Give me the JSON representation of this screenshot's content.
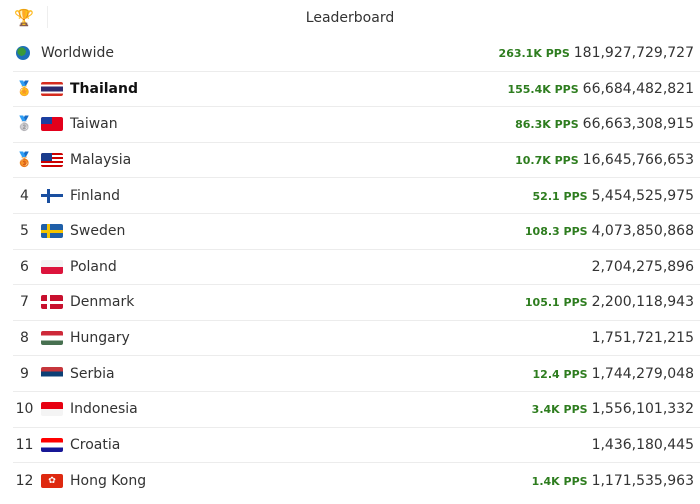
{
  "header": {
    "title": "Leaderboard",
    "icon": "trophy-icon"
  },
  "colors": {
    "pps": "#2e7d1f"
  },
  "worldwide": {
    "name": "Worldwide",
    "pps": "263.1K PPS",
    "score": "181,927,729,727"
  },
  "rows": [
    {
      "rank": "",
      "medal": "gold",
      "name": "Thailand",
      "pps": "155.4K PPS",
      "score": "66,684,482,821",
      "bold": true
    },
    {
      "rank": "",
      "medal": "silver",
      "name": "Taiwan",
      "pps": "86.3K PPS",
      "score": "66,663,308,915"
    },
    {
      "rank": "",
      "medal": "bronze",
      "name": "Malaysia",
      "pps": "10.7K PPS",
      "score": "16,645,766,653"
    },
    {
      "rank": "4",
      "name": "Finland",
      "pps": "52.1 PPS",
      "score": "5,454,525,975"
    },
    {
      "rank": "5",
      "name": "Sweden",
      "pps": "108.3 PPS",
      "score": "4,073,850,868"
    },
    {
      "rank": "6",
      "name": "Poland",
      "pps": "",
      "score": "2,704,275,896"
    },
    {
      "rank": "7",
      "name": "Denmark",
      "pps": "105.1 PPS",
      "score": "2,200,118,943"
    },
    {
      "rank": "8",
      "name": "Hungary",
      "pps": "",
      "score": "1,751,721,215"
    },
    {
      "rank": "9",
      "name": "Serbia",
      "pps": "12.4 PPS",
      "score": "1,744,279,048"
    },
    {
      "rank": "10",
      "name": "Indonesia",
      "pps": "3.4K PPS",
      "score": "1,556,101,332"
    },
    {
      "rank": "11",
      "name": "Croatia",
      "pps": "",
      "score": "1,436,180,445"
    },
    {
      "rank": "12",
      "name": "Hong Kong",
      "pps": "1.4K PPS",
      "score": "1,171,535,963"
    }
  ]
}
